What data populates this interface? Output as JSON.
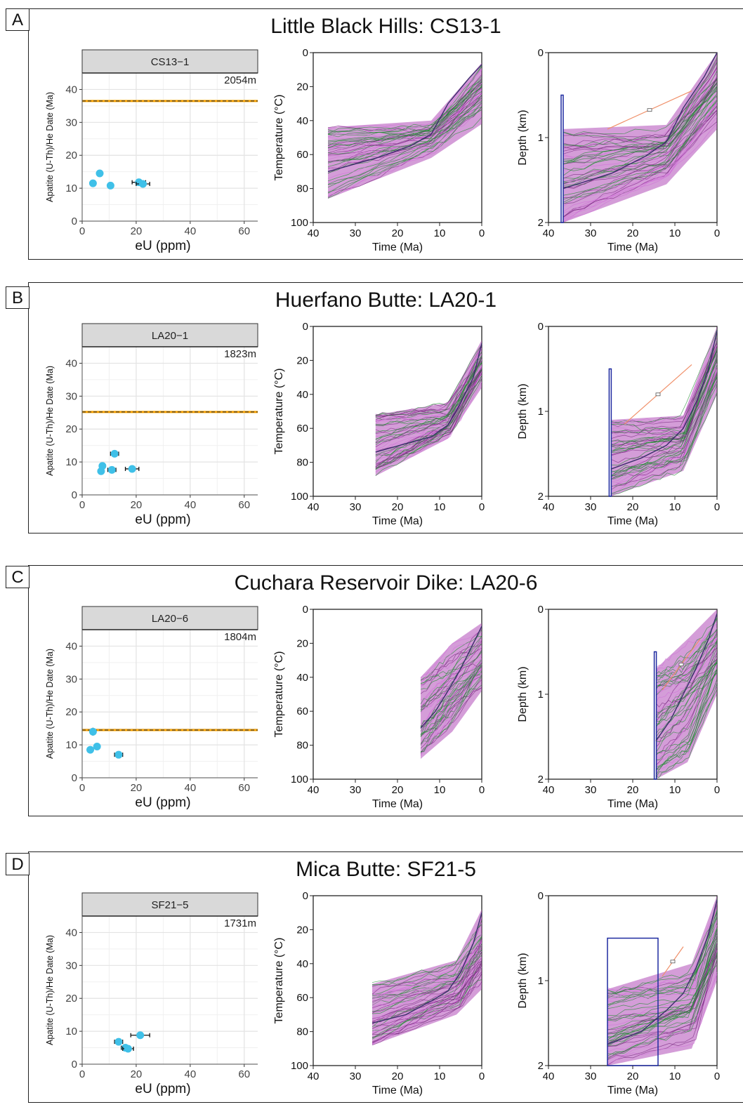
{
  "chart_data": [
    {
      "id": "A",
      "panel_label": "A",
      "title": "Little Black Hills: CS13-1",
      "date_plot": {
        "type": "scatter",
        "facet_label": "CS13−1",
        "elevation": "2054m",
        "xlabel": "eU (ppm)",
        "ylabel": "Apatite (U-Th)/He Date (Ma)",
        "xlim": [
          0,
          65
        ],
        "ylim": [
          0,
          45
        ],
        "xticks": [
          "0",
          "20",
          "40",
          "60"
        ],
        "yticks": [
          "0",
          "10",
          "20",
          "30",
          "40"
        ],
        "reference_age": 36.5,
        "points": [
          {
            "x": 4,
            "y": 11.5,
            "xerr": 0.5,
            "yerr": 0.4
          },
          {
            "x": 6.5,
            "y": 14.5,
            "xerr": 0.6,
            "yerr": 1.0
          },
          {
            "x": 10.5,
            "y": 10.8,
            "xerr": 0.8,
            "yerr": 0.5
          },
          {
            "x": 21,
            "y": 11.8,
            "xerr": 2.5,
            "yerr": 0.5
          },
          {
            "x": 22.5,
            "y": 11.3,
            "xerr": 2.5,
            "yerr": 0.5
          }
        ],
        "grid": true
      },
      "temp_plot": {
        "type": "line",
        "xlabel": "Time (Ma)",
        "ylabel": "Temperature (°C)",
        "xticks": [
          "40",
          "30",
          "20",
          "10",
          "0"
        ],
        "yticks": [
          "0",
          "20",
          "40",
          "60",
          "80",
          "100"
        ],
        "xlim": [
          40,
          0
        ],
        "ylim": [
          0,
          100
        ],
        "envelope": {
          "start": 36.5,
          "start_low": 44,
          "start_high": 86,
          "mid": 12,
          "mid_low": 40,
          "mid_high": 62,
          "end_low": 6,
          "end_high": 42
        },
        "mean_path": [
          [
            36.5,
            70
          ],
          [
            25,
            62
          ],
          [
            17,
            55
          ],
          [
            12,
            48
          ],
          [
            8,
            30
          ],
          [
            3,
            15
          ],
          [
            0,
            7
          ]
        ]
      },
      "depth_plot": {
        "type": "line",
        "xlabel": "Time (Ma)",
        "ylabel": "Depth (km)",
        "xticks": [
          "40",
          "30",
          "20",
          "10",
          "0"
        ],
        "yticks": [
          "0",
          "1",
          "2"
        ],
        "xlim": [
          40,
          0
        ],
        "ylim": [
          0,
          2
        ],
        "envelope": {
          "start": 36.5,
          "start_low": 0.9,
          "start_high": 2.0,
          "mid": 12,
          "mid_low": 0.85,
          "mid_high": 1.55,
          "end_low": 0.0,
          "end_high": 0.9
        },
        "mean_path": [
          [
            36.5,
            1.6
          ],
          [
            25,
            1.42
          ],
          [
            17,
            1.22
          ],
          [
            12,
            1.05
          ],
          [
            8,
            0.65
          ],
          [
            3,
            0.28
          ],
          [
            0,
            0.0
          ]
        ],
        "orange_line": [
          [
            26,
            0.9
          ],
          [
            6,
            0.45
          ]
        ],
        "box": {
          "x0": 37,
          "x1": 36.5,
          "y0": 0.5,
          "y1": 2.0
        }
      }
    },
    {
      "id": "B",
      "panel_label": "B",
      "title": "Huerfano Butte: LA20-1",
      "date_plot": {
        "type": "scatter",
        "facet_label": "LA20−1",
        "elevation": "1823m",
        "xlabel": "eU (ppm)",
        "ylabel": "Apatite (U-Th)/He Date (Ma)",
        "xlim": [
          0,
          65
        ],
        "ylim": [
          0,
          45
        ],
        "xticks": [
          "0",
          "20",
          "40",
          "60"
        ],
        "yticks": [
          "0",
          "10",
          "20",
          "30",
          "40"
        ],
        "reference_age": 25.2,
        "points": [
          {
            "x": 7,
            "y": 7.2,
            "xerr": 0.5,
            "yerr": 0.4
          },
          {
            "x": 7.5,
            "y": 8.8,
            "xerr": 0.5,
            "yerr": 0.4
          },
          {
            "x": 11,
            "y": 7.6,
            "xerr": 1.5,
            "yerr": 0.4
          },
          {
            "x": 12,
            "y": 12.5,
            "xerr": 1.5,
            "yerr": 0.5
          },
          {
            "x": 18.5,
            "y": 7.9,
            "xerr": 2.5,
            "yerr": 0.4
          }
        ],
        "grid": true
      },
      "temp_plot": {
        "type": "line",
        "xlabel": "Time (Ma)",
        "ylabel": "Temperature (°C)",
        "xticks": [
          "40",
          "30",
          "20",
          "10",
          "0"
        ],
        "yticks": [
          "0",
          "20",
          "40",
          "60",
          "80",
          "100"
        ],
        "xlim": [
          40,
          0
        ],
        "ylim": [
          0,
          100
        ],
        "envelope": {
          "start": 25.2,
          "start_low": 52,
          "start_high": 88,
          "mid": 8,
          "mid_low": 45,
          "mid_high": 66,
          "end_low": 8,
          "end_high": 36
        },
        "mean_path": [
          [
            25.2,
            74
          ],
          [
            18,
            69
          ],
          [
            12,
            65
          ],
          [
            8,
            58
          ],
          [
            5,
            45
          ],
          [
            2,
            30
          ],
          [
            0,
            10
          ]
        ]
      },
      "depth_plot": {
        "type": "line",
        "xlabel": "Time (Ma)",
        "ylabel": "Depth (km)",
        "xticks": [
          "40",
          "30",
          "20",
          "10",
          "0"
        ],
        "yticks": [
          "0",
          "1",
          "2"
        ],
        "xlim": [
          40,
          0
        ],
        "ylim": [
          0,
          2
        ],
        "envelope": {
          "start": 25.2,
          "start_low": 1.1,
          "start_high": 2.0,
          "mid": 8,
          "mid_low": 1.05,
          "mid_high": 1.7,
          "end_low": 0.0,
          "end_high": 0.8
        },
        "mean_path": [
          [
            25.2,
            1.68
          ],
          [
            18,
            1.55
          ],
          [
            12,
            1.4
          ],
          [
            8,
            1.2
          ],
          [
            5,
            0.9
          ],
          [
            2,
            0.5
          ],
          [
            0,
            0.05
          ]
        ],
        "orange_line": [
          [
            22,
            1.15
          ],
          [
            6,
            0.45
          ]
        ],
        "box": {
          "x0": 25.6,
          "x1": 25.2,
          "y0": 0.5,
          "y1": 2.0
        }
      }
    },
    {
      "id": "C",
      "panel_label": "C",
      "title": "Cuchara Reservoir Dike: LA20-6",
      "date_plot": {
        "type": "scatter",
        "facet_label": "LA20−6",
        "elevation": "1804m",
        "xlabel": "eU (ppm)",
        "ylabel": "Apatite (U-Th)/He Date (Ma)",
        "xlim": [
          0,
          65
        ],
        "ylim": [
          0,
          45
        ],
        "xticks": [
          "0",
          "20",
          "40",
          "60"
        ],
        "yticks": [
          "0",
          "10",
          "20",
          "30",
          "40"
        ],
        "reference_age": 14.5,
        "points": [
          {
            "x": 3,
            "y": 8.5,
            "xerr": 0.4,
            "yerr": 0.4
          },
          {
            "x": 4,
            "y": 14.0,
            "xerr": 0.8,
            "yerr": 1.2
          },
          {
            "x": 5.5,
            "y": 9.5,
            "xerr": 0.5,
            "yerr": 0.4
          },
          {
            "x": 13.5,
            "y": 7.0,
            "xerr": 1.5,
            "yerr": 0.4
          }
        ],
        "grid": true
      },
      "temp_plot": {
        "type": "line",
        "xlabel": "Time (Ma)",
        "ylabel": "Temperature (°C)",
        "xticks": [
          "40",
          "30",
          "20",
          "10",
          "0"
        ],
        "yticks": [
          "0",
          "20",
          "40",
          "60",
          "80",
          "100"
        ],
        "xlim": [
          40,
          0
        ],
        "ylim": [
          0,
          100
        ],
        "envelope": {
          "start": 14.5,
          "start_low": 40,
          "start_high": 88,
          "mid": 7,
          "mid_low": 20,
          "mid_high": 72,
          "end_low": 8,
          "end_high": 48
        },
        "mean_path": [
          [
            14.5,
            70
          ],
          [
            11,
            60
          ],
          [
            8,
            48
          ],
          [
            5,
            35
          ],
          [
            2,
            20
          ],
          [
            0,
            10
          ]
        ]
      },
      "depth_plot": {
        "type": "line",
        "xlabel": "Time (Ma)",
        "ylabel": "Depth (km)",
        "xticks": [
          "40",
          "30",
          "20",
          "10",
          "0"
        ],
        "yticks": [
          "0",
          "1",
          "2"
        ],
        "xlim": [
          40,
          0
        ],
        "ylim": [
          0,
          2
        ],
        "envelope": {
          "start": 14.5,
          "start_low": 0.7,
          "start_high": 2.0,
          "mid": 7,
          "mid_low": 0.35,
          "mid_high": 1.8,
          "end_low": 0.0,
          "end_high": 1.0
        },
        "mean_path": [
          [
            14.5,
            1.55
          ],
          [
            11,
            1.3
          ],
          [
            8,
            1.0
          ],
          [
            5,
            0.7
          ],
          [
            2,
            0.35
          ],
          [
            0,
            0.05
          ]
        ],
        "orange_line": [
          [
            13,
            0.95
          ],
          [
            4,
            0.35
          ]
        ],
        "box": {
          "x0": 14.9,
          "x1": 14.5,
          "y0": 0.5,
          "y1": 2.0
        }
      }
    },
    {
      "id": "D",
      "panel_label": "D",
      "title": "Mica Butte: SF21-5",
      "date_plot": {
        "type": "scatter",
        "facet_label": "SF21−5",
        "elevation": "1731m",
        "xlabel": "eU (ppm)",
        "ylabel": "Apatite (U-Th)/He Date (Ma)",
        "xlim": [
          0,
          65
        ],
        "ylim": [
          0,
          45
        ],
        "xticks": [
          "0",
          "20",
          "40",
          "60"
        ],
        "yticks": [
          "0",
          "10",
          "20",
          "30",
          "40"
        ],
        "reference_age": null,
        "points": [
          {
            "x": 13.5,
            "y": 6.8,
            "xerr": 1.5,
            "yerr": 0.5
          },
          {
            "x": 16,
            "y": 5.0,
            "xerr": 1.5,
            "yerr": 0.4
          },
          {
            "x": 17,
            "y": 4.7,
            "xerr": 2.0,
            "yerr": 0.4
          },
          {
            "x": 21.5,
            "y": 8.8,
            "xerr": 3.5,
            "yerr": 0.5
          }
        ],
        "grid": true
      },
      "temp_plot": {
        "type": "line",
        "xlabel": "Time (Ma)",
        "ylabel": "Temperature (°C)",
        "xticks": [
          "40",
          "30",
          "20",
          "10",
          "0"
        ],
        "yticks": [
          "0",
          "20",
          "40",
          "60",
          "80",
          "100"
        ],
        "xlim": [
          40,
          0
        ],
        "ylim": [
          0,
          100
        ],
        "envelope": {
          "start": 26,
          "start_low": 52,
          "start_high": 88,
          "mid": 6,
          "mid_low": 38,
          "mid_high": 70,
          "end_low": 8,
          "end_high": 55
        },
        "mean_path": [
          [
            26,
            75
          ],
          [
            18,
            70
          ],
          [
            12,
            62
          ],
          [
            8,
            56
          ],
          [
            5,
            45
          ],
          [
            2,
            28
          ],
          [
            0,
            10
          ]
        ]
      },
      "depth_plot": {
        "type": "line",
        "xlabel": "Time (Ma)",
        "ylabel": "Depth (km)",
        "xticks": [
          "40",
          "30",
          "20",
          "10",
          "0"
        ],
        "yticks": [
          "0",
          "1",
          "2"
        ],
        "xlim": [
          40,
          0
        ],
        "ylim": [
          0,
          2
        ],
        "envelope": {
          "start": 26,
          "start_low": 1.1,
          "start_high": 2.0,
          "mid": 6,
          "mid_low": 0.8,
          "mid_high": 1.8,
          "end_low": 0.0,
          "end_high": 1.0
        },
        "mean_path": [
          [
            26,
            1.75
          ],
          [
            18,
            1.6
          ],
          [
            12,
            1.35
          ],
          [
            8,
            1.15
          ],
          [
            5,
            0.85
          ],
          [
            2,
            0.45
          ],
          [
            0,
            0.05
          ]
        ],
        "orange_line": [
          [
            13,
            0.95
          ],
          [
            8,
            0.6
          ]
        ],
        "box": {
          "x0": 26,
          "x1": 14,
          "y0": 0.5,
          "y1": 2.0
        }
      }
    }
  ],
  "colors": {
    "point": "#3fc0e8",
    "reference_line": "#f5a000",
    "facet_strip": "#d9d9d9",
    "cloud_purple": "#b04cb8",
    "cloud_green": "#1e8c2e",
    "mean_path": "#3a2f6b",
    "box": "#1e2aa0",
    "orange_line": "#f0906a"
  }
}
